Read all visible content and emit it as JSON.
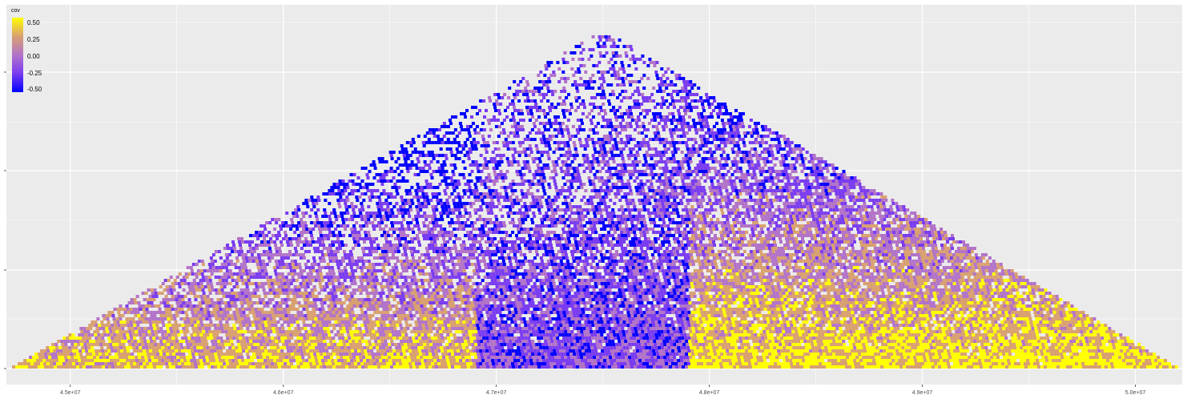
{
  "chart_data": {
    "type": "heatmap",
    "title": "",
    "xlabel": "",
    "ylabel": "",
    "xlim": [
      44700000,
      50220000
    ],
    "x_ticks": [
      "4.5e+07",
      "4.6e+07",
      "4.7e+07",
      "4.8e+07",
      "4.9e+07",
      "5.0e+07"
    ],
    "x_tick_values": [
      45000000,
      46000000,
      47000000,
      48000000,
      49000000,
      50000000
    ],
    "grid": true,
    "legend": {
      "title": "cov",
      "position": "top-left",
      "labels": [
        "0.50",
        "0.25",
        "0.00",
        "-0.25",
        "-0.50"
      ],
      "range": [
        -0.5,
        0.5
      ],
      "colors": [
        "#ffff00",
        "#d9a070",
        "#b273c8",
        "#7a3cf0",
        "#0000ff"
      ]
    },
    "triangle": {
      "base_start": 44700000,
      "base_end": 50220000,
      "apex_x": 47500000
    },
    "blocks": [
      {
        "center": 48900000,
        "span": 2600000,
        "mean": 0.45
      },
      {
        "center": 47300000,
        "span": 1200000,
        "mean": -0.25
      },
      {
        "center": 46400000,
        "span": 1000000,
        "mean": 0.3
      },
      {
        "center": 45500000,
        "span": 1200000,
        "mean": 0.1
      }
    ]
  }
}
